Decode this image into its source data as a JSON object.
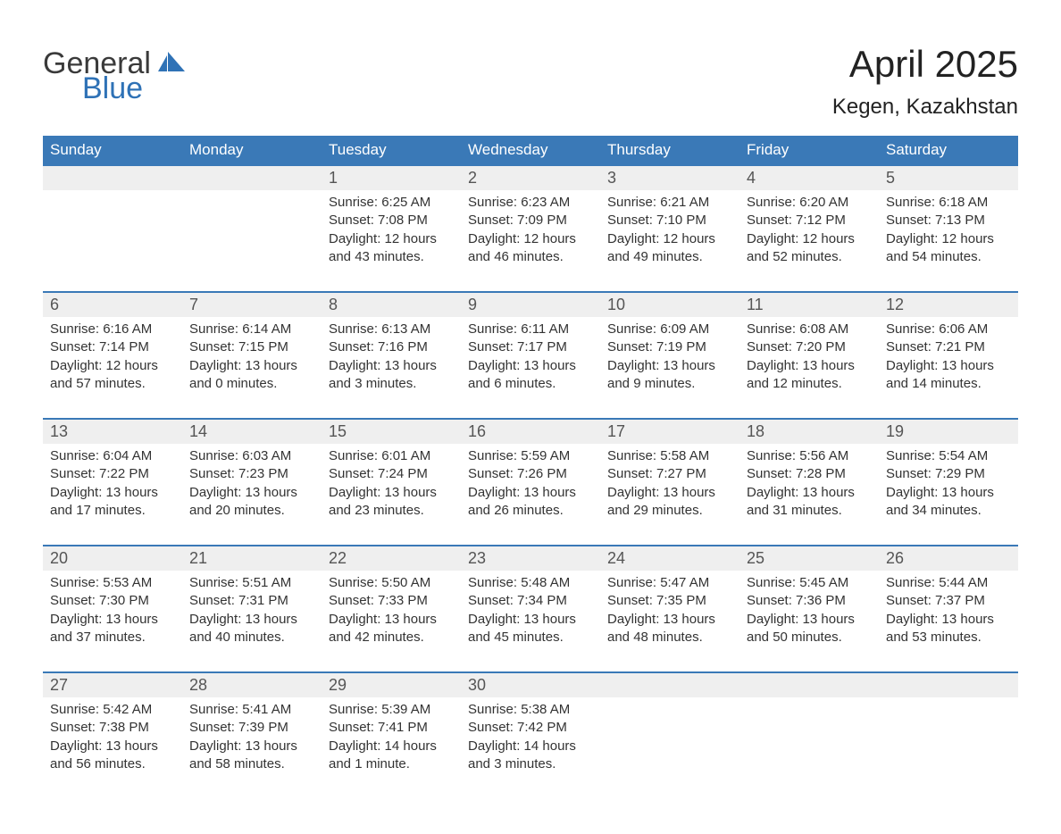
{
  "logo": {
    "word1": "General",
    "word2": "Blue",
    "accent_color": "#2f72b6"
  },
  "title": "April 2025",
  "subtitle": "Kegen, Kazakhstan",
  "header_bg": "#3a79b7",
  "daynum_bg": "#efefef",
  "text_color": "#333333",
  "columns": [
    "Sunday",
    "Monday",
    "Tuesday",
    "Wednesday",
    "Thursday",
    "Friday",
    "Saturday"
  ],
  "weeks": [
    [
      null,
      null,
      {
        "n": "1",
        "sunrise": "6:25 AM",
        "sunset": "7:08 PM",
        "daylight": "12 hours and 43 minutes."
      },
      {
        "n": "2",
        "sunrise": "6:23 AM",
        "sunset": "7:09 PM",
        "daylight": "12 hours and 46 minutes."
      },
      {
        "n": "3",
        "sunrise": "6:21 AM",
        "sunset": "7:10 PM",
        "daylight": "12 hours and 49 minutes."
      },
      {
        "n": "4",
        "sunrise": "6:20 AM",
        "sunset": "7:12 PM",
        "daylight": "12 hours and 52 minutes."
      },
      {
        "n": "5",
        "sunrise": "6:18 AM",
        "sunset": "7:13 PM",
        "daylight": "12 hours and 54 minutes."
      }
    ],
    [
      {
        "n": "6",
        "sunrise": "6:16 AM",
        "sunset": "7:14 PM",
        "daylight": "12 hours and 57 minutes."
      },
      {
        "n": "7",
        "sunrise": "6:14 AM",
        "sunset": "7:15 PM",
        "daylight": "13 hours and 0 minutes."
      },
      {
        "n": "8",
        "sunrise": "6:13 AM",
        "sunset": "7:16 PM",
        "daylight": "13 hours and 3 minutes."
      },
      {
        "n": "9",
        "sunrise": "6:11 AM",
        "sunset": "7:17 PM",
        "daylight": "13 hours and 6 minutes."
      },
      {
        "n": "10",
        "sunrise": "6:09 AM",
        "sunset": "7:19 PM",
        "daylight": "13 hours and 9 minutes."
      },
      {
        "n": "11",
        "sunrise": "6:08 AM",
        "sunset": "7:20 PM",
        "daylight": "13 hours and 12 minutes."
      },
      {
        "n": "12",
        "sunrise": "6:06 AM",
        "sunset": "7:21 PM",
        "daylight": "13 hours and 14 minutes."
      }
    ],
    [
      {
        "n": "13",
        "sunrise": "6:04 AM",
        "sunset": "7:22 PM",
        "daylight": "13 hours and 17 minutes."
      },
      {
        "n": "14",
        "sunrise": "6:03 AM",
        "sunset": "7:23 PM",
        "daylight": "13 hours and 20 minutes."
      },
      {
        "n": "15",
        "sunrise": "6:01 AM",
        "sunset": "7:24 PM",
        "daylight": "13 hours and 23 minutes."
      },
      {
        "n": "16",
        "sunrise": "5:59 AM",
        "sunset": "7:26 PM",
        "daylight": "13 hours and 26 minutes."
      },
      {
        "n": "17",
        "sunrise": "5:58 AM",
        "sunset": "7:27 PM",
        "daylight": "13 hours and 29 minutes."
      },
      {
        "n": "18",
        "sunrise": "5:56 AM",
        "sunset": "7:28 PM",
        "daylight": "13 hours and 31 minutes."
      },
      {
        "n": "19",
        "sunrise": "5:54 AM",
        "sunset": "7:29 PM",
        "daylight": "13 hours and 34 minutes."
      }
    ],
    [
      {
        "n": "20",
        "sunrise": "5:53 AM",
        "sunset": "7:30 PM",
        "daylight": "13 hours and 37 minutes."
      },
      {
        "n": "21",
        "sunrise": "5:51 AM",
        "sunset": "7:31 PM",
        "daylight": "13 hours and 40 minutes."
      },
      {
        "n": "22",
        "sunrise": "5:50 AM",
        "sunset": "7:33 PM",
        "daylight": "13 hours and 42 minutes."
      },
      {
        "n": "23",
        "sunrise": "5:48 AM",
        "sunset": "7:34 PM",
        "daylight": "13 hours and 45 minutes."
      },
      {
        "n": "24",
        "sunrise": "5:47 AM",
        "sunset": "7:35 PM",
        "daylight": "13 hours and 48 minutes."
      },
      {
        "n": "25",
        "sunrise": "5:45 AM",
        "sunset": "7:36 PM",
        "daylight": "13 hours and 50 minutes."
      },
      {
        "n": "26",
        "sunrise": "5:44 AM",
        "sunset": "7:37 PM",
        "daylight": "13 hours and 53 minutes."
      }
    ],
    [
      {
        "n": "27",
        "sunrise": "5:42 AM",
        "sunset": "7:38 PM",
        "daylight": "13 hours and 56 minutes."
      },
      {
        "n": "28",
        "sunrise": "5:41 AM",
        "sunset": "7:39 PM",
        "daylight": "13 hours and 58 minutes."
      },
      {
        "n": "29",
        "sunrise": "5:39 AM",
        "sunset": "7:41 PM",
        "daylight": "14 hours and 1 minute."
      },
      {
        "n": "30",
        "sunrise": "5:38 AM",
        "sunset": "7:42 PM",
        "daylight": "14 hours and 3 minutes."
      },
      null,
      null,
      null
    ]
  ],
  "labels": {
    "sunrise": "Sunrise: ",
    "sunset": "Sunset: ",
    "daylight": "Daylight: "
  }
}
